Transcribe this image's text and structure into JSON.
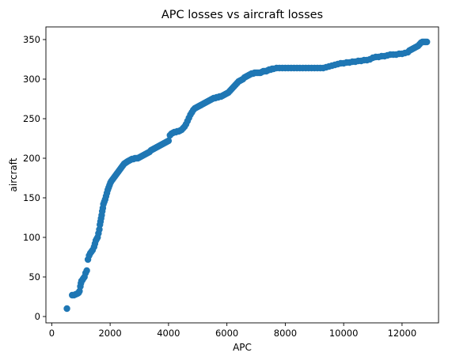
{
  "chart_data": {
    "type": "scatter",
    "title": "APC losses vs aircraft losses",
    "xlabel": "APC",
    "ylabel": "aircraft",
    "xlim": [
      -200,
      13250
    ],
    "ylim": [
      -8,
      366
    ],
    "xticks": [
      0,
      2000,
      4000,
      6000,
      8000,
      10000,
      12000
    ],
    "yticks": [
      0,
      50,
      100,
      150,
      200,
      250,
      300,
      350
    ],
    "grid": false,
    "color": "#1f77b4",
    "series": [
      {
        "points": [
          [
            520,
            10
          ],
          [
            700,
            27
          ],
          [
            760,
            27
          ],
          [
            820,
            28
          ],
          [
            880,
            29
          ],
          [
            920,
            30
          ],
          [
            950,
            32
          ],
          [
            980,
            38
          ],
          [
            1000,
            42
          ],
          [
            1020,
            45
          ],
          [
            1050,
            46
          ],
          [
            1080,
            48
          ],
          [
            1120,
            50
          ],
          [
            1160,
            55
          ],
          [
            1200,
            58
          ],
          [
            1240,
            72
          ],
          [
            1280,
            77
          ],
          [
            1320,
            80
          ],
          [
            1360,
            82
          ],
          [
            1400,
            84
          ],
          [
            1450,
            88
          ],
          [
            1480,
            92
          ],
          [
            1510,
            96
          ],
          [
            1540,
            98
          ],
          [
            1570,
            100
          ],
          [
            1600,
            105
          ],
          [
            1630,
            110
          ],
          [
            1650,
            116
          ],
          [
            1670,
            120
          ],
          [
            1690,
            124
          ],
          [
            1710,
            128
          ],
          [
            1730,
            133
          ],
          [
            1750,
            137
          ],
          [
            1770,
            142
          ],
          [
            1800,
            145
          ],
          [
            1830,
            148
          ],
          [
            1860,
            152
          ],
          [
            1890,
            156
          ],
          [
            1920,
            160
          ],
          [
            1950,
            163
          ],
          [
            1980,
            166
          ],
          [
            2010,
            169
          ],
          [
            2040,
            171
          ],
          [
            2080,
            173
          ],
          [
            2120,
            175
          ],
          [
            2160,
            177
          ],
          [
            2200,
            179
          ],
          [
            2240,
            181
          ],
          [
            2280,
            183
          ],
          [
            2320,
            185
          ],
          [
            2360,
            187
          ],
          [
            2400,
            189
          ],
          [
            2440,
            191
          ],
          [
            2480,
            193
          ],
          [
            2520,
            194
          ],
          [
            2560,
            195
          ],
          [
            2600,
            196
          ],
          [
            2650,
            197
          ],
          [
            2700,
            198
          ],
          [
            2750,
            199
          ],
          [
            2800,
            199
          ],
          [
            2850,
            200
          ],
          [
            2900,
            200
          ],
          [
            2950,
            200
          ],
          [
            3000,
            201
          ],
          [
            3050,
            202
          ],
          [
            3100,
            203
          ],
          [
            3150,
            204
          ],
          [
            3200,
            205
          ],
          [
            3250,
            206
          ],
          [
            3300,
            207
          ],
          [
            3350,
            208
          ],
          [
            3400,
            210
          ],
          [
            3450,
            211
          ],
          [
            3500,
            212
          ],
          [
            3550,
            213
          ],
          [
            3600,
            214
          ],
          [
            3650,
            215
          ],
          [
            3700,
            216
          ],
          [
            3750,
            217
          ],
          [
            3800,
            218
          ],
          [
            3850,
            219
          ],
          [
            3900,
            220
          ],
          [
            3950,
            221
          ],
          [
            4000,
            222
          ],
          [
            4050,
            229
          ],
          [
            4100,
            231
          ],
          [
            4150,
            232
          ],
          [
            4200,
            233
          ],
          [
            4250,
            233
          ],
          [
            4300,
            234
          ],
          [
            4350,
            234
          ],
          [
            4400,
            235
          ],
          [
            4450,
            236
          ],
          [
            4500,
            238
          ],
          [
            4550,
            240
          ],
          [
            4600,
            243
          ],
          [
            4650,
            247
          ],
          [
            4700,
            251
          ],
          [
            4750,
            255
          ],
          [
            4800,
            258
          ],
          [
            4850,
            261
          ],
          [
            4900,
            263
          ],
          [
            4950,
            264
          ],
          [
            5000,
            265
          ],
          [
            5050,
            266
          ],
          [
            5100,
            267
          ],
          [
            5150,
            268
          ],
          [
            5200,
            269
          ],
          [
            5250,
            270
          ],
          [
            5300,
            271
          ],
          [
            5350,
            272
          ],
          [
            5400,
            273
          ],
          [
            5450,
            274
          ],
          [
            5500,
            275
          ],
          [
            5550,
            276
          ],
          [
            5600,
            276
          ],
          [
            5650,
            277
          ],
          [
            5700,
            277
          ],
          [
            5750,
            278
          ],
          [
            5800,
            278
          ],
          [
            5850,
            279
          ],
          [
            5900,
            280
          ],
          [
            5950,
            281
          ],
          [
            6000,
            282
          ],
          [
            6050,
            283
          ],
          [
            6100,
            285
          ],
          [
            6150,
            287
          ],
          [
            6200,
            289
          ],
          [
            6250,
            291
          ],
          [
            6300,
            293
          ],
          [
            6350,
            295
          ],
          [
            6400,
            297
          ],
          [
            6450,
            298
          ],
          [
            6500,
            299
          ],
          [
            6550,
            300
          ],
          [
            6600,
            302
          ],
          [
            6650,
            303
          ],
          [
            6700,
            304
          ],
          [
            6750,
            305
          ],
          [
            6800,
            306
          ],
          [
            6850,
            307
          ],
          [
            6900,
            307
          ],
          [
            6950,
            308
          ],
          [
            7000,
            308
          ],
          [
            7050,
            308
          ],
          [
            7100,
            308
          ],
          [
            7150,
            308
          ],
          [
            7200,
            309
          ],
          [
            7250,
            310
          ],
          [
            7300,
            310
          ],
          [
            7350,
            310
          ],
          [
            7400,
            311
          ],
          [
            7450,
            312
          ],
          [
            7500,
            312
          ],
          [
            7550,
            313
          ],
          [
            7600,
            313
          ],
          [
            7700,
            314
          ],
          [
            7800,
            314
          ],
          [
            7900,
            314
          ],
          [
            8000,
            314
          ],
          [
            8100,
            314
          ],
          [
            8200,
            314
          ],
          [
            8300,
            314
          ],
          [
            8400,
            314
          ],
          [
            8500,
            314
          ],
          [
            8600,
            314
          ],
          [
            8700,
            314
          ],
          [
            8800,
            314
          ],
          [
            8900,
            314
          ],
          [
            9000,
            314
          ],
          [
            9100,
            314
          ],
          [
            9200,
            314
          ],
          [
            9300,
            314
          ],
          [
            9400,
            315
          ],
          [
            9500,
            316
          ],
          [
            9600,
            317
          ],
          [
            9700,
            318
          ],
          [
            9800,
            319
          ],
          [
            9900,
            320
          ],
          [
            10000,
            320
          ],
          [
            10100,
            321
          ],
          [
            10200,
            321
          ],
          [
            10300,
            322
          ],
          [
            10400,
            322
          ],
          [
            10500,
            323
          ],
          [
            10600,
            323
          ],
          [
            10700,
            324
          ],
          [
            10800,
            324
          ],
          [
            10900,
            325
          ],
          [
            11000,
            327
          ],
          [
            11100,
            328
          ],
          [
            11200,
            328
          ],
          [
            11300,
            329
          ],
          [
            11400,
            329
          ],
          [
            11500,
            330
          ],
          [
            11600,
            331
          ],
          [
            11700,
            331
          ],
          [
            11800,
            331
          ],
          [
            11900,
            332
          ],
          [
            12000,
            332
          ],
          [
            12100,
            333
          ],
          [
            12200,
            334
          ],
          [
            12250,
            336
          ],
          [
            12300,
            337
          ],
          [
            12350,
            338
          ],
          [
            12400,
            339
          ],
          [
            12450,
            340
          ],
          [
            12500,
            341
          ],
          [
            12550,
            342
          ],
          [
            12600,
            344
          ],
          [
            12650,
            346
          ],
          [
            12700,
            347
          ],
          [
            12750,
            347
          ],
          [
            12800,
            347
          ],
          [
            12850,
            347
          ]
        ]
      }
    ]
  }
}
